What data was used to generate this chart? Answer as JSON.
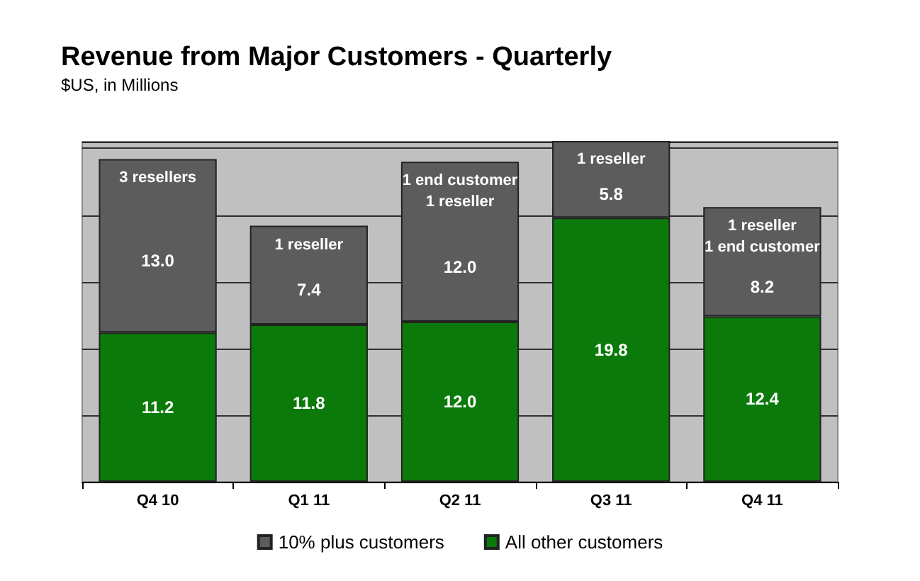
{
  "chart_data": {
    "type": "bar",
    "title": "Revenue from Major Customers - Quarterly",
    "subtitle": "$US, in Millions",
    "categories": [
      "Q4 10",
      "Q1 11",
      "Q2 11",
      "Q3 11",
      "Q4 11"
    ],
    "stacked": true,
    "grid": "y",
    "legend": "bottom",
    "tick_labels": "x",
    "ylim": [
      0,
      25.5
    ],
    "series": [
      {
        "name": "All other customers",
        "color": "#0b7a0b",
        "values": [
          11.2,
          11.8,
          12.0,
          19.8,
          12.4
        ],
        "value_labels": [
          "11.2",
          "11.8",
          "12.0",
          "19.8",
          "12.4"
        ]
      },
      {
        "name": "10% plus customers",
        "color": "#5c5c5c",
        "values": [
          13.0,
          7.4,
          12.0,
          5.8,
          8.2
        ],
        "value_labels": [
          "13.0",
          "7.4",
          "12.0",
          "5.8",
          "8.2"
        ]
      }
    ],
    "annotations": [
      "3 resellers",
      "1 reseller",
      "1 end customer\n1 reseller",
      "1 reseller",
      "1 reseller\n1 end customer"
    ]
  }
}
